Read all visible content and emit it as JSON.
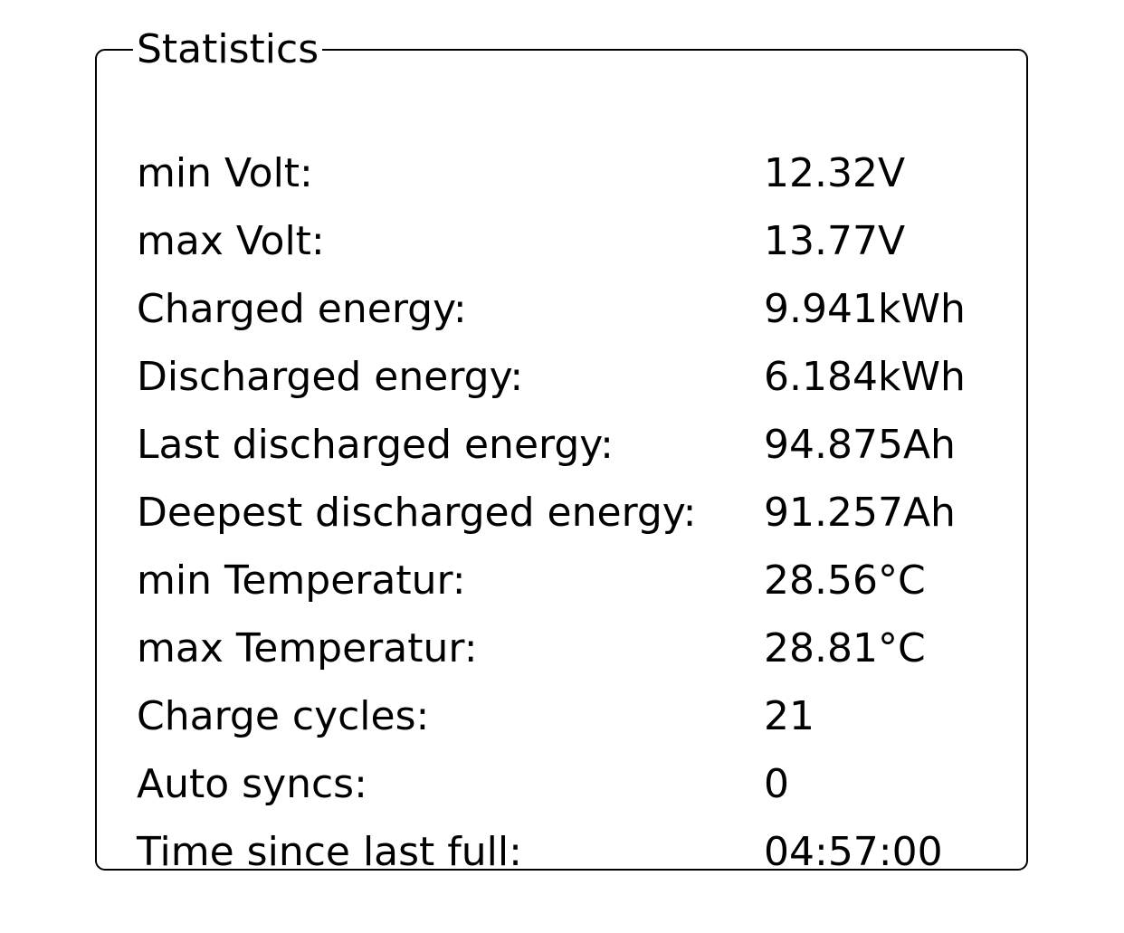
{
  "panel": {
    "title": "Statistics"
  },
  "stats": [
    {
      "label": "min Volt:",
      "value": "12.32V"
    },
    {
      "label": "max Volt:",
      "value": "13.77V"
    },
    {
      "label": "Charged energy:",
      "value": "9.941kWh"
    },
    {
      "label": "Discharged energy:",
      "value": "6.184kWh"
    },
    {
      "label": "Last discharged energy:",
      "value": "94.875Ah"
    },
    {
      "label": "Deepest discharged energy:",
      "value": "91.257Ah"
    },
    {
      "label": "min Temperatur:",
      "value": "28.56°C"
    },
    {
      "label": "max Temperatur:",
      "value": "28.81°C"
    },
    {
      "label": "Charge cycles:",
      "value": "21"
    },
    {
      "label": "Auto syncs:",
      "value": "0"
    },
    {
      "label": "Time since last full:",
      "value": "04:57:00"
    }
  ]
}
